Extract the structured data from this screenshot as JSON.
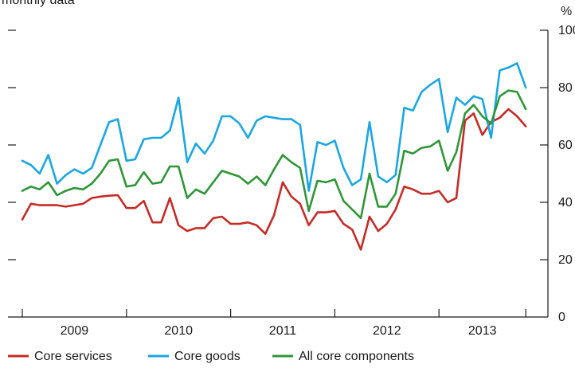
{
  "chart_data": {
    "type": "line",
    "subtitle": "monthly data",
    "ylabel": "%",
    "ylim": [
      0,
      100
    ],
    "yticks": [
      0,
      20,
      40,
      60,
      80,
      100
    ],
    "grid": false,
    "legend_position": "bottom-left",
    "x_start": "2008-12",
    "x_tick_boundaries": [
      "2008-12",
      "2009-12",
      "2010-12",
      "2011-12",
      "2012-12",
      "2013-10"
    ],
    "year_labels": [
      "2009",
      "2010",
      "2011",
      "2012",
      "2013"
    ],
    "series": [
      {
        "name": "Core services",
        "color": "#c62b26",
        "values": [
          34,
          39.5,
          39,
          39,
          39,
          38.5,
          39,
          39.5,
          41.5,
          42,
          42.3,
          42.5,
          38,
          38,
          40.5,
          33,
          33,
          41.5,
          32,
          30,
          31,
          31,
          34.5,
          35,
          32.5,
          32.5,
          33,
          32,
          29,
          35.5,
          47,
          42,
          39.5,
          32,
          36.5,
          36.5,
          37,
          32.5,
          30.5,
          23.5,
          35,
          30,
          32.5,
          37.5,
          45.5,
          44.5,
          43,
          43,
          44,
          40,
          41.5,
          68.5,
          71,
          63.5,
          68,
          69.5,
          72.5,
          70,
          66.5
        ]
      },
      {
        "name": "Core goods",
        "color": "#1aa6e4",
        "values": [
          54.5,
          53,
          50,
          56.5,
          46.5,
          49.5,
          51.5,
          50,
          52,
          60,
          68,
          69,
          54.5,
          55,
          62,
          62.5,
          62.5,
          65,
          76.5,
          54,
          60.5,
          57,
          61.5,
          70,
          70,
          67.5,
          62.5,
          68.5,
          70,
          69.5,
          69,
          69,
          67,
          44,
          61,
          60,
          61.5,
          52,
          46,
          48,
          68,
          49,
          47,
          49.5,
          73,
          72,
          78.5,
          81,
          83,
          64.5,
          76.5,
          74,
          77,
          76,
          62.5,
          86,
          87,
          88.5,
          80
        ]
      },
      {
        "name": "All core components",
        "color": "#2e9637",
        "values": [
          44,
          45.5,
          44.5,
          47,
          42.5,
          44,
          45,
          44.5,
          46.5,
          50,
          54.5,
          55,
          45.5,
          46,
          50.5,
          46.5,
          47,
          52.5,
          52.5,
          41.5,
          44.5,
          43,
          47,
          51,
          50,
          49,
          46.5,
          49,
          46,
          51.5,
          56.5,
          54,
          52,
          37,
          47.5,
          47,
          48,
          40.5,
          37.5,
          34.5,
          50,
          38.5,
          38.5,
          43,
          58,
          57,
          59,
          59.5,
          61.5,
          51,
          57.5,
          71,
          74,
          70,
          67.5,
          77,
          79,
          78.5,
          72.5
        ]
      }
    ]
  }
}
